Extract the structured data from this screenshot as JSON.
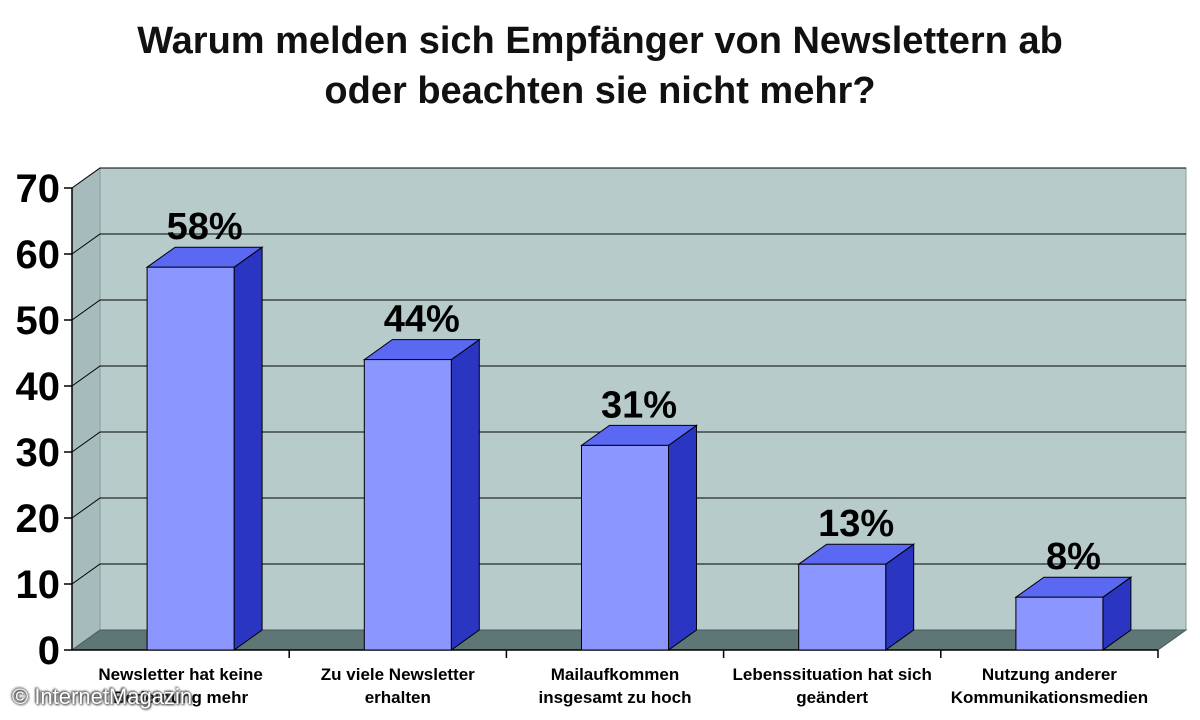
{
  "chart_data": {
    "type": "bar",
    "title_lines": [
      "Warum melden sich Empfänger von Newslettern ab",
      "oder beachten sie nicht mehr?"
    ],
    "categories": [
      [
        "Newsletter hat keine",
        "Bedeutung mehr"
      ],
      [
        "Zu viele Newsletter",
        "erhalten"
      ],
      [
        "Mailaufkommen",
        "insgesamt zu hoch"
      ],
      [
        "Lebenssituation hat sich",
        "geändert"
      ],
      [
        "Nutzung anderer",
        "Kommunikationsmedien"
      ]
    ],
    "values": [
      58,
      44,
      31,
      13,
      8
    ],
    "data_labels": [
      "58%",
      "44%",
      "31%",
      "13%",
      "8%"
    ],
    "ylim": [
      0,
      70
    ],
    "yticks": [
      0,
      10,
      20,
      30,
      40,
      50,
      60,
      70
    ],
    "grid": true,
    "xlabel": "",
    "ylabel": "",
    "style": "3d-column"
  },
  "colors": {
    "wall": "#b8cbcb",
    "side_wall": "#a6bcbc",
    "floor": "#5e7676",
    "bar_front": "#8b96ff",
    "bar_top": "#5a68f2",
    "bar_side": "#2a35c2",
    "bar_outline": "#000000"
  },
  "watermark": "© InternetMagazin"
}
